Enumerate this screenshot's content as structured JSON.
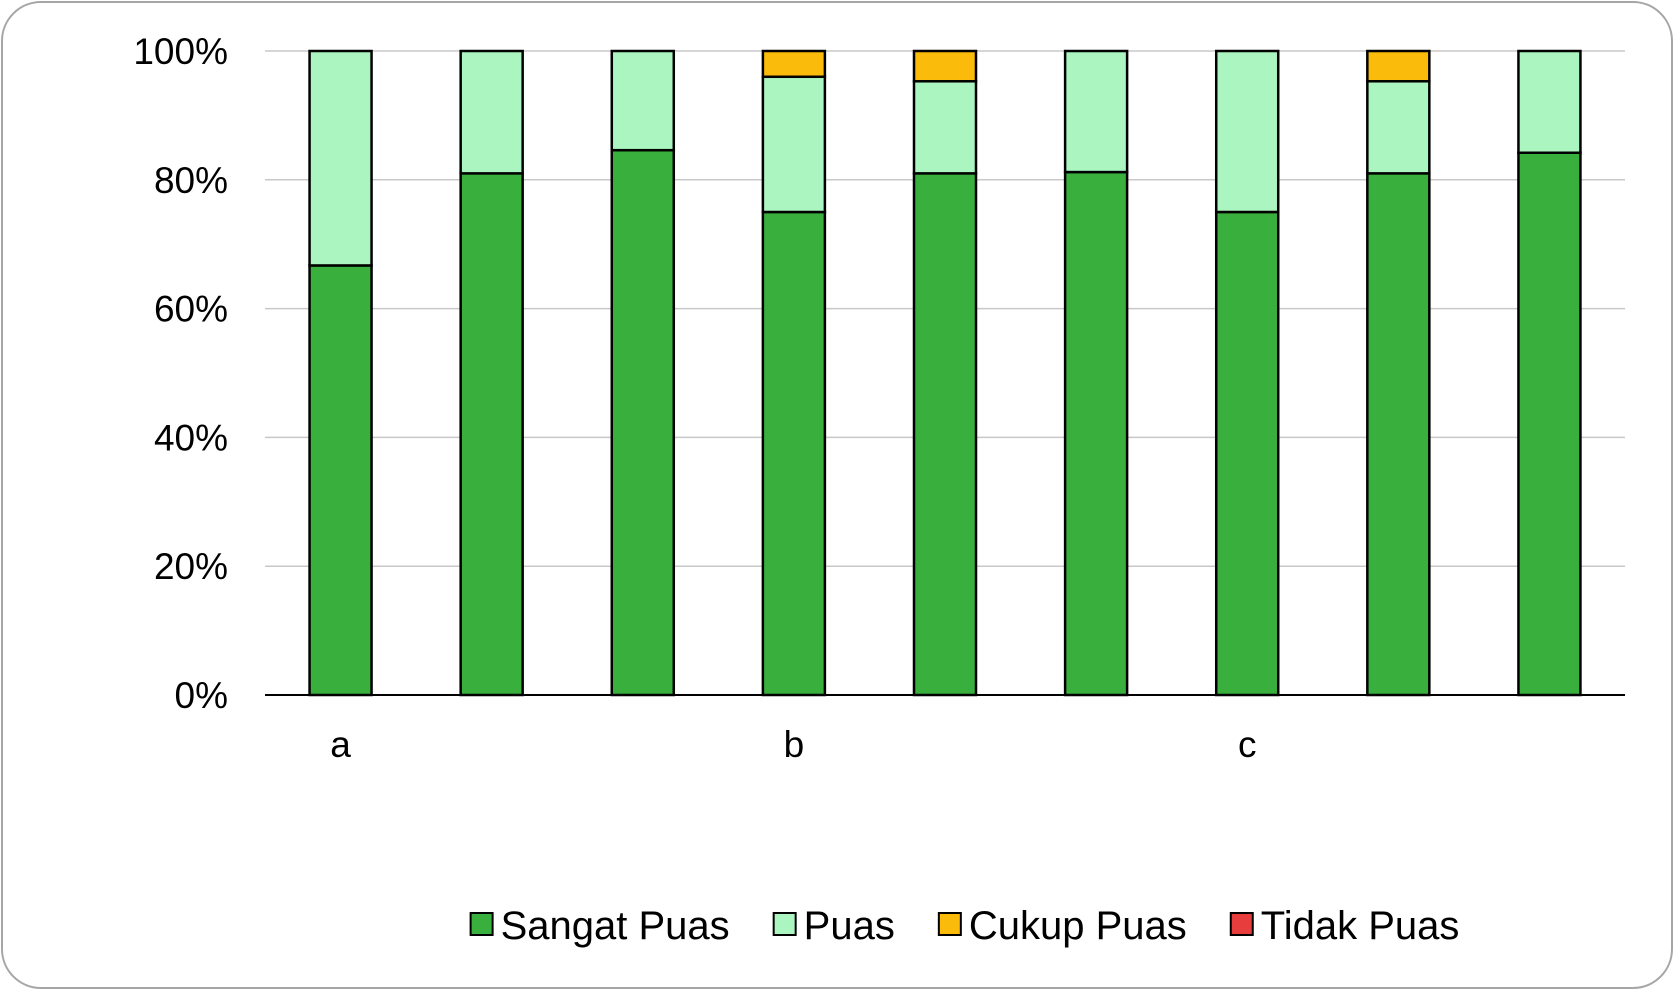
{
  "chart_data": {
    "type": "bar",
    "stacked": true,
    "percent": true,
    "categories": [
      "a",
      "",
      "",
      "b",
      "",
      "",
      "c",
      "",
      ""
    ],
    "series": [
      {
        "name": "Sangat Puas",
        "color": "#39b03d",
        "values": [
          66.7,
          81.0,
          84.6,
          75.0,
          81.0,
          81.2,
          75.0,
          81.0,
          84.2
        ]
      },
      {
        "name": "Puas",
        "color": "#abf5c0",
        "values": [
          33.3,
          19.0,
          15.4,
          21.0,
          14.3,
          18.8,
          25.0,
          14.3,
          15.8
        ]
      },
      {
        "name": "Cukup Puas",
        "color": "#fbbb0b",
        "values": [
          0,
          0,
          0,
          4.0,
          4.7,
          0,
          0,
          4.7,
          0
        ]
      },
      {
        "name": "Tidak Puas",
        "color": "#e83d3d",
        "values": [
          0,
          0,
          0,
          0,
          0,
          0,
          0,
          0,
          0
        ]
      }
    ],
    "yticks": [
      "0%",
      "20%",
      "40%",
      "60%",
      "80%",
      "100%"
    ],
    "ylim": [
      0,
      100
    ],
    "grid": true,
    "legend": "bottom",
    "title": "",
    "xlabel": "",
    "ylabel": ""
  }
}
